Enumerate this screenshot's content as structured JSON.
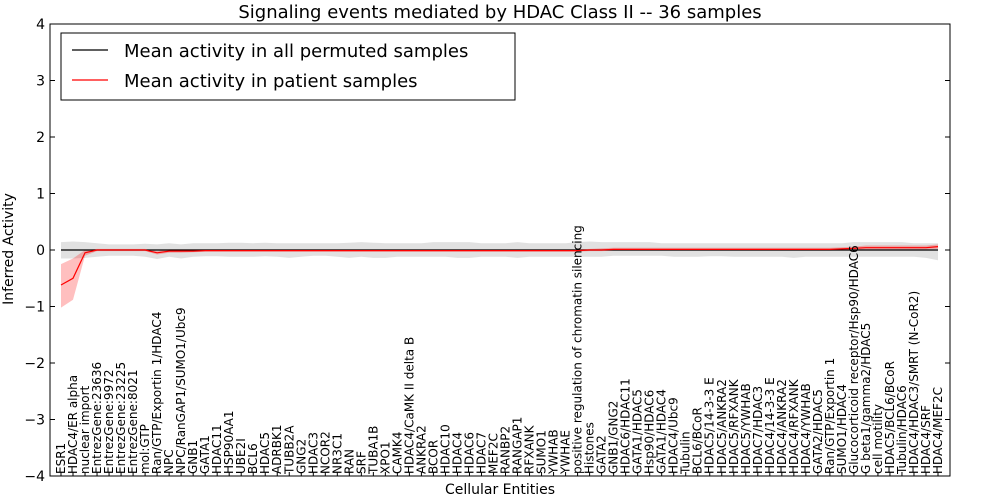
{
  "chart_data": {
    "type": "line",
    "title": "Signaling events mediated by HDAC Class II -- 36 samples",
    "xlabel": "Cellular Entities",
    "ylabel": "Inferred Activity",
    "ylim": [
      -4,
      4
    ],
    "yticks": [
      -4,
      -3,
      -2,
      -1,
      0,
      1,
      2,
      3,
      4
    ],
    "grid": false,
    "legend_position": "top-left",
    "categories": [
      "ESR1",
      "HDAC4/ER alpha",
      "nuclear import",
      "EntrezGene:23636",
      "EntrezGene:9972",
      "EntrezGene:23225",
      "EntrezGene:8021",
      "mol:GTP",
      "Ran/GTP/Exportin 1/HDAC4",
      "NPC",
      "NPC/RanGAP1/SUMO1/Ubc9",
      "GNB1",
      "GATA1",
      "HDAC11",
      "HSP90AA1",
      "UBE2I",
      "BCL6",
      "HDAC5",
      "ADRBK1",
      "TUBB2A",
      "GNG2",
      "HDAC3",
      "NCOR2",
      "NR3C1",
      "RAN",
      "SRF",
      "TUBA1B",
      "XPO1",
      "CAMK4",
      "HDAC4/CaMK II delta B",
      "ANKRA2",
      "BCOR",
      "HDAC10",
      "HDAC4",
      "HDAC6",
      "HDAC7",
      "MEF2C",
      "RANBP2",
      "RANGAP1",
      "RFXANK",
      "SUMO1",
      "YWHAB",
      "YWHAE",
      "positive regulation of chromatin silencing",
      "Histones",
      "GATA2",
      "GNB1/GNG2",
      "HDAC6/HDAC11",
      "GATA1/HDAC5",
      "Hsp90/HDAC6",
      "GATA1/HDAC4",
      "HDAC4/Ubc9",
      "Tubulin",
      "BCL6/BCoR",
      "HDAC5/14-3-3 E",
      "HDAC5/ANKRA2",
      "HDAC5/RFXANK",
      "HDAC5/YWHAB",
      "HDAC7/HDAC3",
      "HDAC4/14-3-3 E",
      "HDAC4/ANKRA2",
      "HDAC4/RFXANK",
      "HDAC4/YWHAB",
      "GATA2/HDAC5",
      "Ran/GTP/Exportin 1",
      "SUMO1/HDAC4",
      "Glucocorticoid receptor/Hsp90/HDAC6",
      "G beta1/gamma2/HDAC5",
      "cell motility",
      "HDAC5/BCL6/BCoR",
      "Tubulin/HDAC6",
      "HDAC4/HDAC3/SMRT (N-CoR2)",
      "HDAC4/SRF",
      "HDAC4/MEF2C"
    ],
    "series": [
      {
        "name": "Mean activity in all permuted samples",
        "color": "#000000",
        "values": [
          0,
          0,
          0,
          0,
          0,
          0,
          0,
          0,
          0,
          0,
          0,
          0,
          0,
          0,
          0,
          0,
          0,
          0,
          0,
          0,
          0,
          0,
          0,
          0,
          0,
          0,
          0,
          0,
          0,
          0,
          0,
          0,
          0,
          0,
          0,
          0,
          0,
          0,
          0,
          0,
          0,
          0,
          0,
          0,
          0,
          0,
          0,
          0,
          0,
          0,
          0,
          0,
          0,
          0,
          0,
          0,
          0,
          0,
          0,
          0,
          0,
          0,
          0,
          0,
          0,
          0,
          0,
          0,
          0,
          0,
          0,
          0,
          0,
          0
        ],
        "band_lower": [
          -0.15,
          -0.15,
          -0.14,
          -0.12,
          -0.1,
          -0.1,
          -0.1,
          -0.12,
          -0.16,
          -0.12,
          -0.15,
          -0.12,
          -0.11,
          -0.11,
          -0.12,
          -0.12,
          -0.12,
          -0.11,
          -0.12,
          -0.14,
          -0.12,
          -0.1,
          -0.1,
          -0.12,
          -0.14,
          -0.12,
          -0.14,
          -0.14,
          -0.12,
          -0.12,
          -0.12,
          -0.12,
          -0.12,
          -0.14,
          -0.14,
          -0.12,
          -0.12,
          -0.12,
          -0.14,
          -0.12,
          -0.12,
          -0.12,
          -0.12,
          -0.12,
          -0.12,
          -0.12,
          -0.1,
          -0.1,
          -0.1,
          -0.1,
          -0.1,
          -0.12,
          -0.12,
          -0.12,
          -0.11,
          -0.11,
          -0.12,
          -0.12,
          -0.12,
          -0.12,
          -0.12,
          -0.14,
          -0.12,
          -0.12,
          -0.12,
          -0.12,
          -0.12,
          -0.12,
          -0.12,
          -0.12,
          -0.12,
          -0.12,
          -0.14,
          -0.18
        ],
        "band_upper": [
          0.14,
          0.15,
          0.14,
          0.12,
          0.1,
          0.1,
          0.1,
          0.11,
          0.1,
          0.12,
          0.1,
          0.12,
          0.12,
          0.12,
          0.13,
          0.13,
          0.12,
          0.13,
          0.12,
          0.12,
          0.12,
          0.12,
          0.12,
          0.12,
          0.13,
          0.14,
          0.13,
          0.12,
          0.12,
          0.12,
          0.12,
          0.14,
          0.14,
          0.14,
          0.14,
          0.12,
          0.12,
          0.12,
          0.14,
          0.12,
          0.12,
          0.12,
          0.12,
          0.14,
          0.15,
          0.14,
          0.14,
          0.14,
          0.14,
          0.14,
          0.12,
          0.12,
          0.12,
          0.12,
          0.12,
          0.12,
          0.12,
          0.12,
          0.12,
          0.12,
          0.12,
          0.12,
          0.12,
          0.12,
          0.12,
          0.12,
          0.14,
          0.14,
          0.14,
          0.14,
          0.14,
          0.12,
          0.12,
          0.12
        ]
      },
      {
        "name": "Mean activity in patient samples",
        "color": "#ff0000",
        "values": [
          -0.62,
          -0.5,
          -0.05,
          0,
          0,
          0,
          0,
          0,
          -0.05,
          -0.02,
          -0.02,
          -0.02,
          -0.01,
          -0.01,
          -0.01,
          -0.01,
          -0.01,
          -0.01,
          -0.01,
          -0.01,
          -0.01,
          -0.01,
          -0.01,
          -0.01,
          -0.01,
          -0.01,
          -0.01,
          -0.01,
          -0.01,
          -0.01,
          -0.01,
          -0.01,
          -0.01,
          -0.01,
          -0.01,
          -0.01,
          -0.01,
          -0.01,
          -0.01,
          -0.01,
          -0.01,
          -0.01,
          -0.01,
          -0.01,
          0,
          0,
          0.01,
          0.01,
          0.01,
          0.01,
          0.01,
          0.01,
          0.01,
          0.01,
          0.01,
          0.01,
          0.01,
          0.01,
          0.01,
          0.01,
          0.01,
          0.01,
          0.01,
          0.01,
          0.01,
          0.02,
          0.03,
          0.04,
          0.04,
          0.04,
          0.04,
          0.04,
          0.04,
          0.06
        ],
        "band_lower": [
          -1.02,
          -0.88,
          -0.1,
          -0.02,
          -0.02,
          -0.02,
          -0.02,
          -0.02,
          -0.08,
          -0.05,
          -0.05,
          -0.04,
          -0.03,
          -0.03,
          -0.03,
          -0.03,
          -0.03,
          -0.03,
          -0.03,
          -0.03,
          -0.03,
          -0.03,
          -0.03,
          -0.03,
          -0.03,
          -0.03,
          -0.03,
          -0.03,
          -0.03,
          -0.03,
          -0.03,
          -0.03,
          -0.03,
          -0.03,
          -0.03,
          -0.03,
          -0.03,
          -0.03,
          -0.03,
          -0.03,
          -0.03,
          -0.03,
          -0.03,
          -0.03,
          -0.02,
          -0.02,
          -0.01,
          -0.01,
          -0.01,
          -0.01,
          -0.01,
          -0.01,
          -0.01,
          -0.01,
          -0.01,
          -0.01,
          -0.01,
          -0.01,
          -0.01,
          -0.01,
          -0.01,
          -0.01,
          -0.01,
          -0.01,
          -0.01,
          0,
          0,
          0.01,
          0.01,
          0.01,
          0.01,
          0.01,
          0.01,
          0.02
        ],
        "band_upper": [
          -0.25,
          -0.15,
          0,
          0.02,
          0.02,
          0.02,
          0.02,
          0.02,
          -0.02,
          0.01,
          0.01,
          0.01,
          0.01,
          0.01,
          0.01,
          0.01,
          0.01,
          0.01,
          0.01,
          0.01,
          0.01,
          0.01,
          0.01,
          0.01,
          0.01,
          0.01,
          0.01,
          0.01,
          0.01,
          0.01,
          0.01,
          0.01,
          0.01,
          0.01,
          0.01,
          0.01,
          0.01,
          0.01,
          0.01,
          0.01,
          0.01,
          0.01,
          0.01,
          0.01,
          0.02,
          0.03,
          0.04,
          0.04,
          0.04,
          0.04,
          0.04,
          0.04,
          0.04,
          0.04,
          0.04,
          0.04,
          0.04,
          0.04,
          0.04,
          0.04,
          0.04,
          0.04,
          0.04,
          0.04,
          0.04,
          0.05,
          0.06,
          0.08,
          0.08,
          0.08,
          0.08,
          0.08,
          0.08,
          0.1
        ]
      }
    ]
  }
}
